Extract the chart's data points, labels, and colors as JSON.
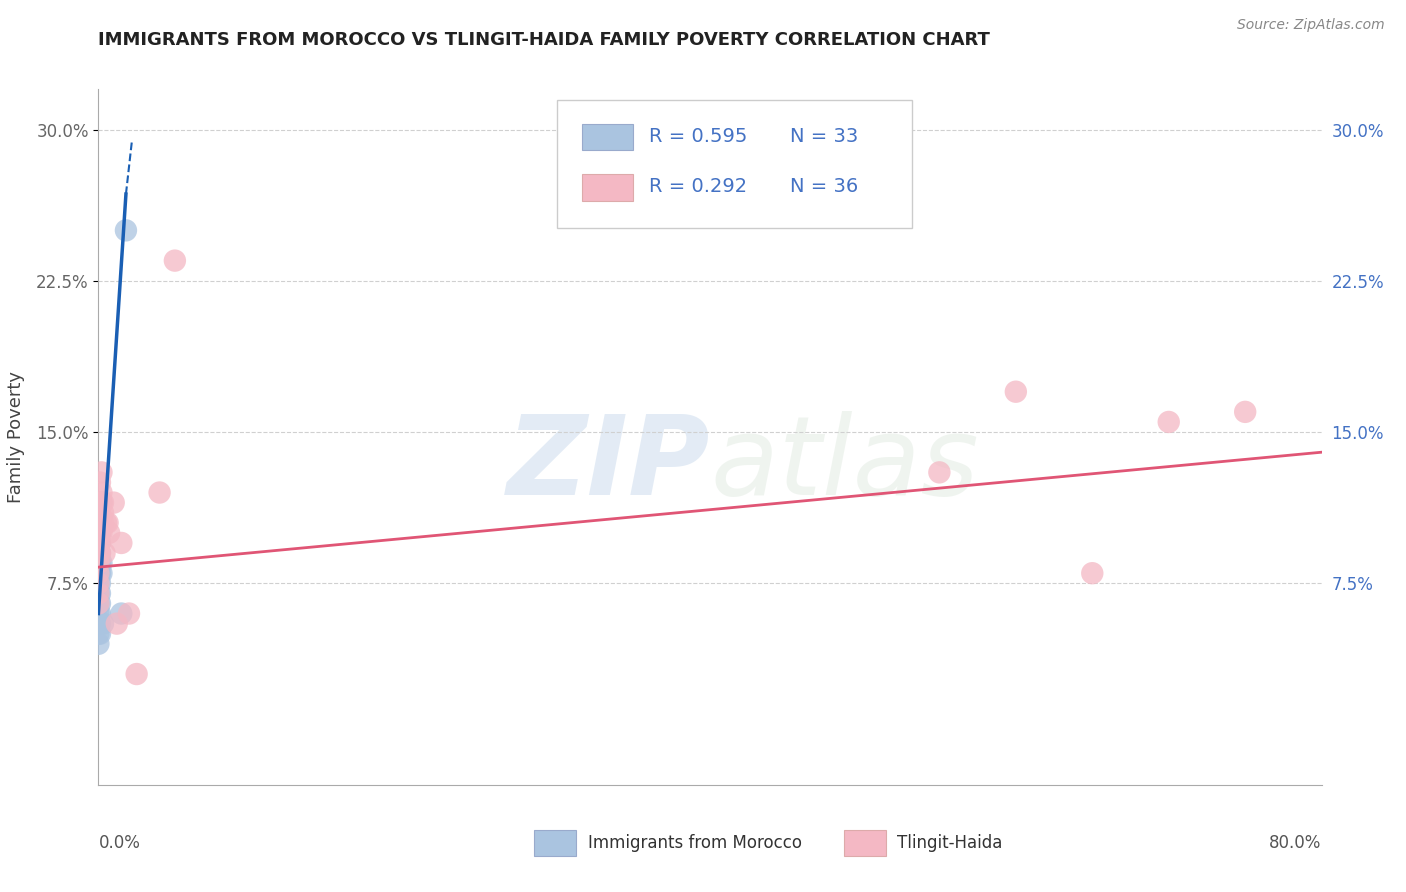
{
  "title": "IMMIGRANTS FROM MOROCCO VS TLINGIT-HAIDA FAMILY POVERTY CORRELATION CHART",
  "source": "Source: ZipAtlas.com",
  "ylabel": "Family Poverty",
  "xlim": [
    0.0,
    0.8
  ],
  "ylim": [
    -0.025,
    0.32
  ],
  "yticks": [
    0.075,
    0.15,
    0.225,
    0.3
  ],
  "ytick_labels": [
    "7.5%",
    "15.0%",
    "22.5%",
    "30.0%"
  ],
  "blue_R": "R = 0.595",
  "blue_N": "N = 33",
  "pink_R": "R = 0.292",
  "pink_N": "N = 36",
  "legend_blue_label": "Immigrants from Morocco",
  "legend_pink_label": "Tlingit-Haida",
  "blue_color": "#aac4e0",
  "pink_color": "#f4b8c4",
  "blue_line_color": "#1a5fb4",
  "pink_line_color": "#e05575",
  "blue_scatter": [
    [
      0.0,
      0.09
    ],
    [
      0.0,
      0.08
    ],
    [
      0.0,
      0.105
    ],
    [
      0.0,
      0.095
    ],
    [
      0.0,
      0.1
    ],
    [
      0.0,
      0.09
    ],
    [
      0.0,
      0.095
    ],
    [
      0.0,
      0.085
    ],
    [
      0.0,
      0.08
    ],
    [
      0.0,
      0.075
    ],
    [
      0.0,
      0.07
    ],
    [
      0.0,
      0.065
    ],
    [
      0.0,
      0.06
    ],
    [
      0.0,
      0.055
    ],
    [
      0.0,
      0.05
    ],
    [
      0.0,
      0.045
    ],
    [
      0.001,
      0.1
    ],
    [
      0.001,
      0.095
    ],
    [
      0.001,
      0.09
    ],
    [
      0.001,
      0.085
    ],
    [
      0.001,
      0.08
    ],
    [
      0.001,
      0.075
    ],
    [
      0.001,
      0.07
    ],
    [
      0.001,
      0.065
    ],
    [
      0.001,
      0.06
    ],
    [
      0.001,
      0.055
    ],
    [
      0.001,
      0.05
    ],
    [
      0.002,
      0.115
    ],
    [
      0.002,
      0.085
    ],
    [
      0.002,
      0.08
    ],
    [
      0.003,
      0.055
    ],
    [
      0.015,
      0.06
    ],
    [
      0.018,
      0.25
    ]
  ],
  "pink_scatter": [
    [
      0.0,
      0.115
    ],
    [
      0.0,
      0.1
    ],
    [
      0.0,
      0.09
    ],
    [
      0.0,
      0.085
    ],
    [
      0.0,
      0.08
    ],
    [
      0.0,
      0.075
    ],
    [
      0.0,
      0.07
    ],
    [
      0.0,
      0.065
    ],
    [
      0.001,
      0.125
    ],
    [
      0.001,
      0.11
    ],
    [
      0.001,
      0.1
    ],
    [
      0.001,
      0.095
    ],
    [
      0.001,
      0.09
    ],
    [
      0.002,
      0.13
    ],
    [
      0.002,
      0.12
    ],
    [
      0.002,
      0.115
    ],
    [
      0.002,
      0.1
    ],
    [
      0.003,
      0.115
    ],
    [
      0.003,
      0.11
    ],
    [
      0.003,
      0.105
    ],
    [
      0.004,
      0.09
    ],
    [
      0.005,
      0.105
    ],
    [
      0.006,
      0.105
    ],
    [
      0.007,
      0.1
    ],
    [
      0.01,
      0.115
    ],
    [
      0.012,
      0.055
    ],
    [
      0.015,
      0.095
    ],
    [
      0.02,
      0.06
    ],
    [
      0.025,
      0.03
    ],
    [
      0.04,
      0.12
    ],
    [
      0.05,
      0.235
    ],
    [
      0.55,
      0.13
    ],
    [
      0.6,
      0.17
    ],
    [
      0.65,
      0.08
    ],
    [
      0.7,
      0.155
    ],
    [
      0.75,
      0.16
    ]
  ],
  "blue_trendline_solid": [
    [
      0.0,
      0.06
    ],
    [
      0.018,
      0.268
    ]
  ],
  "blue_trendline_dash": [
    [
      0.018,
      0.268
    ],
    [
      0.022,
      0.295
    ]
  ],
  "pink_trendline": [
    [
      0.0,
      0.083
    ],
    [
      0.8,
      0.14
    ]
  ],
  "text_blue_color": "#4472c4",
  "grid_color": "#d0d0d0"
}
